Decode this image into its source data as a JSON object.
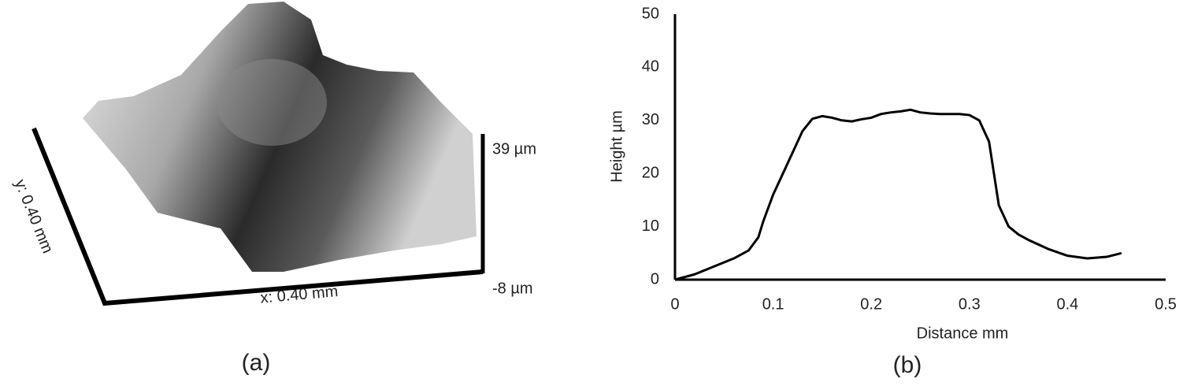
{
  "panel_a": {
    "label": "(a)",
    "y_axis_label": "y: 0.40 mm",
    "x_axis_label": "x: 0.40 mm",
    "z_max_label": "39 µm",
    "z_min_label": "-8 µm"
  },
  "chart_data": {
    "type": "line",
    "panel_label": "(b)",
    "x_label": "Distance mm",
    "y_label": "Height µm",
    "x": [
      0,
      0.02,
      0.04,
      0.06,
      0.075,
      0.085,
      0.09,
      0.1,
      0.11,
      0.12,
      0.13,
      0.14,
      0.15,
      0.16,
      0.17,
      0.18,
      0.19,
      0.2,
      0.21,
      0.22,
      0.23,
      0.24,
      0.25,
      0.26,
      0.27,
      0.28,
      0.29,
      0.3,
      0.31,
      0.32,
      0.325,
      0.33,
      0.34,
      0.35,
      0.36,
      0.38,
      0.4,
      0.42,
      0.44,
      0.455
    ],
    "values": [
      0,
      1,
      2.5,
      4,
      5.5,
      8,
      11,
      16,
      20,
      24,
      28,
      30.3,
      30.8,
      30.5,
      30,
      29.8,
      30.2,
      30.5,
      31.2,
      31.5,
      31.7,
      32,
      31.5,
      31.3,
      31.2,
      31.2,
      31.2,
      31,
      30,
      26,
      20,
      14,
      10,
      8.5,
      7.5,
      5.8,
      4.5,
      4,
      4.3,
      5
    ],
    "color": "#000000",
    "xlim": [
      0,
      0.5
    ],
    "xticks": [
      0,
      0.1,
      0.2,
      0.3,
      0.4,
      0.5
    ],
    "ylim": [
      0,
      50
    ],
    "yticks": [
      0,
      10,
      20,
      30,
      40,
      50
    ],
    "grid": false
  }
}
